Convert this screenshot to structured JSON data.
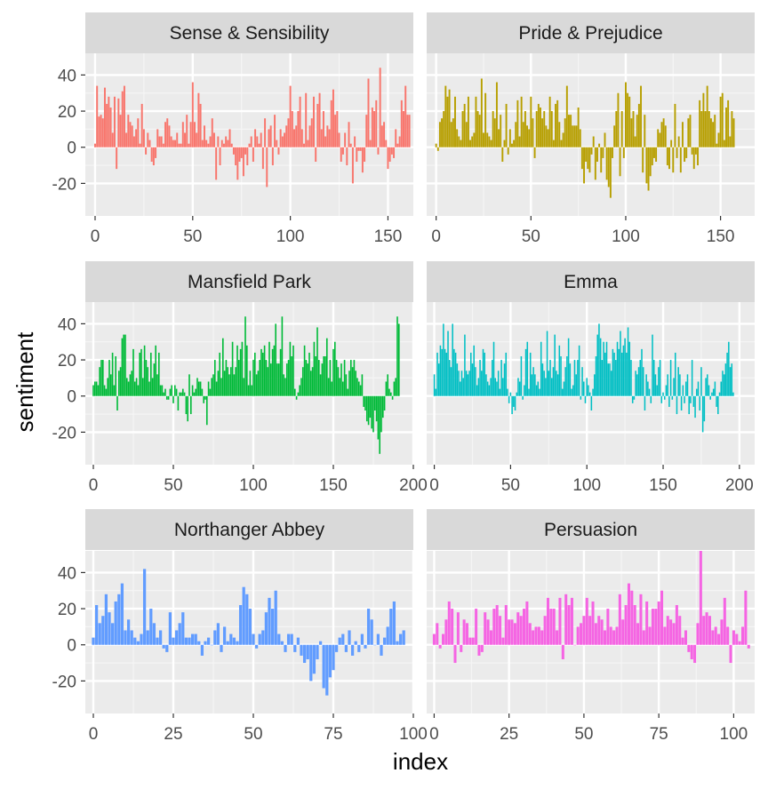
{
  "chart_data": {
    "type": "bar",
    "xlabel": "index",
    "ylabel": "sentiment",
    "ylim": [
      -38,
      52
    ],
    "y_ticks": [
      -20,
      0,
      20,
      40
    ],
    "grid": true,
    "legend": "none",
    "facets": [
      {
        "title": "Sense & Sensibility",
        "color": "#F8766D",
        "xlim": [
          -5,
          163
        ],
        "x_ticks": [
          0,
          50,
          100,
          150
        ],
        "values": [
          2,
          34,
          17,
          18,
          16,
          33,
          24,
          28,
          22,
          8,
          28,
          -12,
          27,
          18,
          31,
          34,
          8,
          18,
          14,
          12,
          6,
          10,
          16,
          2,
          24,
          10,
          -4,
          8,
          4,
          -8,
          -10,
          -6,
          10,
          6,
          6,
          2,
          14,
          16,
          12,
          6,
          4,
          4,
          8,
          2,
          2,
          14,
          8,
          18,
          2,
          14,
          36,
          14,
          8,
          30,
          24,
          4,
          12,
          4,
          2,
          6,
          16,
          8,
          -18,
          6,
          -10,
          4,
          2,
          6,
          4,
          10,
          2,
          -4,
          -10,
          -18,
          -8,
          -6,
          -16,
          -4,
          -10,
          2,
          6,
          -8,
          10,
          6,
          2,
          8,
          -12,
          16,
          -22,
          10,
          12,
          -10,
          18,
          4,
          -4,
          10,
          6,
          8,
          12,
          16,
          34,
          20,
          10,
          12,
          20,
          28,
          10,
          2,
          30,
          4,
          12,
          16,
          28,
          -8,
          24,
          30,
          10,
          20,
          6,
          12,
          10,
          26,
          32,
          18,
          20,
          8,
          -8,
          -4,
          8,
          -10,
          14,
          2,
          -20,
          6,
          -8,
          -2,
          -2,
          -14,
          -8,
          18,
          38,
          4,
          22,
          20,
          26,
          -4,
          44,
          12,
          14,
          4,
          -12,
          -8,
          -4,
          -6,
          10,
          2,
          6,
          26,
          20,
          34,
          18,
          18
        ]
      },
      {
        "title": "Pride & Prejudice",
        "color": "#B79F00",
        "xlim": [
          -5,
          168
        ],
        "x_ticks": [
          0,
          50,
          100,
          150
        ],
        "values": [
          2,
          -2,
          14,
          16,
          20,
          34,
          28,
          32,
          14,
          16,
          28,
          10,
          6,
          4,
          20,
          24,
          14,
          28,
          4,
          6,
          8,
          28,
          20,
          18,
          38,
          8,
          30,
          8,
          6,
          4,
          20,
          16,
          36,
          10,
          18,
          -8,
          4,
          24,
          -4,
          10,
          2,
          4,
          14,
          26,
          6,
          28,
          14,
          20,
          12,
          10,
          28,
          16,
          -6,
          20,
          24,
          22,
          16,
          20,
          12,
          10,
          28,
          20,
          4,
          24,
          26,
          14,
          4,
          8,
          16,
          34,
          18,
          18,
          12,
          12,
          12,
          22,
          10,
          -12,
          -20,
          -8,
          -12,
          -14,
          -4,
          6,
          -18,
          -8,
          2,
          -14,
          -6,
          8,
          -18,
          -22,
          -28,
          -6,
          12,
          20,
          30,
          -16,
          20,
          -6,
          36,
          30,
          28,
          16,
          20,
          6,
          18,
          24,
          34,
          -14,
          18,
          -20,
          -24,
          -16,
          -10,
          -6,
          -8,
          10,
          8,
          14,
          16,
          12,
          -10,
          -12,
          4,
          -14,
          24,
          -6,
          6,
          -14,
          14,
          -8,
          -6,
          16,
          18,
          -4,
          -12,
          -4,
          -10,
          26,
          20,
          30,
          20,
          34,
          20,
          16,
          14,
          18,
          2,
          8,
          28,
          30,
          4,
          22,
          26,
          6,
          20,
          16
        ]
      },
      {
        "title": "Mansfield Park",
        "color": "#00BA38",
        "xlim": [
          -5,
          200
        ],
        "x_ticks": [
          0,
          50,
          100,
          150,
          200
        ],
        "values": [
          6,
          8,
          8,
          6,
          16,
          20,
          20,
          6,
          4,
          10,
          20,
          12,
          24,
          6,
          22,
          -8,
          14,
          16,
          32,
          34,
          34,
          10,
          8,
          12,
          14,
          26,
          8,
          10,
          6,
          24,
          26,
          10,
          28,
          20,
          16,
          8,
          24,
          10,
          18,
          28,
          12,
          24,
          6,
          6,
          2,
          4,
          -2,
          -2,
          4,
          6,
          -4,
          6,
          4,
          -8,
          2,
          2,
          4,
          2,
          -10,
          -14,
          12,
          -10,
          6,
          2,
          4,
          10,
          8,
          8,
          4,
          -4,
          -2,
          -16,
          8,
          4,
          10,
          12,
          20,
          8,
          14,
          24,
          10,
          32,
          14,
          20,
          16,
          12,
          16,
          30,
          12,
          16,
          28,
          20,
          26,
          30,
          10,
          44,
          28,
          6,
          14,
          6,
          20,
          24,
          12,
          14,
          20,
          26,
          24,
          28,
          20,
          16,
          30,
          18,
          26,
          28,
          40,
          18,
          18,
          26,
          44,
          12,
          10,
          18,
          20,
          30,
          22,
          28,
          4,
          -2,
          2,
          6,
          10,
          16,
          28,
          20,
          18,
          24,
          14,
          16,
          30,
          22,
          38,
          20,
          12,
          18,
          22,
          22,
          32,
          10,
          20,
          8,
          26,
          30,
          20,
          16,
          10,
          18,
          8,
          20,
          12,
          4,
          14,
          20,
          16,
          20,
          14,
          10,
          8,
          6,
          12,
          -6,
          -8,
          -14,
          -16,
          -12,
          -18,
          -20,
          -8,
          -14,
          -24,
          -32,
          -20,
          -12,
          -8,
          8,
          12,
          4,
          2,
          -2,
          8,
          10,
          44,
          40
        ]
      },
      {
        "title": "Emma",
        "color": "#00BFC4",
        "xlim": [
          -5,
          210
        ],
        "x_ticks": [
          0,
          50,
          100,
          150,
          200
        ],
        "values": [
          12,
          4,
          24,
          18,
          28,
          26,
          40,
          26,
          24,
          36,
          20,
          16,
          40,
          26,
          24,
          18,
          14,
          8,
          14,
          10,
          34,
          14,
          12,
          14,
          24,
          18,
          28,
          16,
          6,
          10,
          20,
          14,
          26,
          24,
          12,
          8,
          6,
          10,
          20,
          30,
          10,
          8,
          14,
          4,
          20,
          10,
          18,
          24,
          4,
          -4,
          2,
          -10,
          -6,
          -8,
          2,
          10,
          8,
          22,
          -2,
          6,
          26,
          30,
          4,
          24,
          12,
          16,
          12,
          6,
          8,
          4,
          30,
          18,
          14,
          10,
          36,
          14,
          20,
          10,
          16,
          34,
          14,
          12,
          28,
          22,
          4,
          8,
          16,
          22,
          32,
          18,
          4,
          6,
          20,
          12,
          20,
          28,
          -2,
          16,
          8,
          -4,
          10,
          6,
          2,
          -8,
          4,
          12,
          22,
          34,
          40,
          32,
          20,
          30,
          24,
          30,
          18,
          18,
          14,
          26,
          24,
          20,
          30,
          26,
          36,
          24,
          28,
          32,
          24,
          38,
          30,
          20,
          -4,
          -2,
          14,
          12,
          16,
          20,
          26,
          16,
          -8,
          12,
          8,
          4,
          -4,
          34,
          20,
          12,
          6,
          16,
          20,
          -4,
          2,
          -2,
          6,
          12,
          -6,
          20,
          -2,
          10,
          24,
          -10,
          16,
          12,
          -8,
          6,
          -4,
          8,
          12,
          -10,
          -4,
          20,
          -6,
          -12,
          4,
          8,
          -8,
          16,
          -20,
          -14,
          10,
          12,
          6,
          -2,
          2,
          4,
          8,
          -6,
          -10,
          2,
          8,
          14,
          12,
          18,
          24,
          30,
          16,
          18,
          2
        ]
      },
      {
        "title": "Northanger Abbey",
        "color": "#619CFF",
        "xlim": [
          -2.5,
          100
        ],
        "x_ticks": [
          0,
          25,
          50,
          75,
          100
        ],
        "values": [
          4,
          22,
          12,
          16,
          28,
          18,
          12,
          24,
          28,
          34,
          8,
          14,
          8,
          4,
          2,
          6,
          42,
          8,
          20,
          12,
          4,
          8,
          -2,
          -4,
          18,
          4,
          8,
          12,
          18,
          4,
          4,
          6,
          6,
          2,
          -6,
          2,
          4,
          0,
          8,
          12,
          -4,
          10,
          2,
          6,
          4,
          2,
          22,
          32,
          28,
          20,
          6,
          -2,
          6,
          8,
          18,
          26,
          20,
          30,
          6,
          2,
          -4,
          6,
          6,
          -4,
          4,
          -6,
          -10,
          -8,
          -20,
          -16,
          -8,
          2,
          -24,
          -28,
          -18,
          -14,
          -4,
          4,
          6,
          -4,
          8,
          -6,
          2,
          -4,
          6,
          -2,
          20,
          14,
          0,
          6,
          -6,
          4,
          10,
          20,
          24,
          2,
          6,
          8
        ]
      },
      {
        "title": "Persuasion",
        "color": "#F564E3",
        "xlim": [
          -2.5,
          107
        ],
        "x_ticks": [
          0,
          25,
          50,
          75,
          100
        ],
        "values": [
          6,
          12,
          -2,
          6,
          14,
          24,
          20,
          -10,
          18,
          -4,
          14,
          12,
          4,
          4,
          20,
          -6,
          -4,
          18,
          14,
          8,
          20,
          22,
          16,
          4,
          22,
          14,
          14,
          12,
          18,
          16,
          20,
          24,
          12,
          8,
          10,
          10,
          8,
          16,
          26,
          20,
          20,
          8,
          26,
          -8,
          28,
          22,
          26,
          0,
          10,
          12,
          16,
          26,
          16,
          24,
          12,
          16,
          14,
          8,
          20,
          10,
          8,
          10,
          28,
          14,
          22,
          34,
          30,
          22,
          12,
          28,
          8,
          24,
          10,
          20,
          20,
          24,
          30,
          10,
          16,
          14,
          12,
          22,
          16,
          4,
          8,
          -4,
          -8,
          -10,
          12,
          52,
          16,
          18,
          16,
          8,
          10,
          6,
          14,
          26,
          10,
          -10,
          8,
          6,
          2,
          10,
          30,
          -2
        ]
      }
    ]
  }
}
